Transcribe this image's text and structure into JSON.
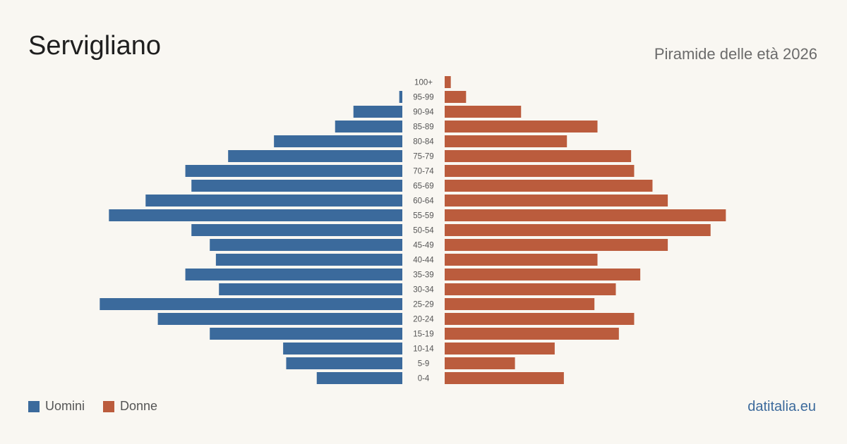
{
  "header": {
    "title": "Servigliano",
    "subtitle": "Piramide delle età 2026"
  },
  "legend": {
    "men_label": "Uomini",
    "women_label": "Donne"
  },
  "footer": {
    "source": "datitalia.eu"
  },
  "colors": {
    "men": "#3b6a9c",
    "women": "#bb5c3d",
    "background": "#f9f7f2"
  },
  "chart_data": {
    "type": "bar",
    "orientation": "horizontal-pyramid",
    "categories": [
      "100+",
      "95-99",
      "90-94",
      "85-89",
      "80-84",
      "75-79",
      "70-74",
      "65-69",
      "60-64",
      "55-59",
      "50-54",
      "45-49",
      "40-44",
      "35-39",
      "30-34",
      "25-29",
      "20-24",
      "15-19",
      "10-14",
      "5-9",
      "0-4"
    ],
    "series": [
      {
        "name": "Uomini",
        "values": [
          0,
          1,
          16,
          22,
          42,
          57,
          71,
          69,
          84,
          96,
          69,
          63,
          61,
          71,
          60,
          99,
          80,
          63,
          39,
          38,
          28
        ]
      },
      {
        "name": "Donne",
        "values": [
          2,
          7,
          25,
          50,
          40,
          61,
          62,
          68,
          73,
          92,
          87,
          73,
          50,
          64,
          56,
          49,
          62,
          57,
          36,
          23,
          39
        ]
      }
    ],
    "xlim": [
      0,
      100
    ],
    "grid": false,
    "legend_position": "bottom-left"
  }
}
